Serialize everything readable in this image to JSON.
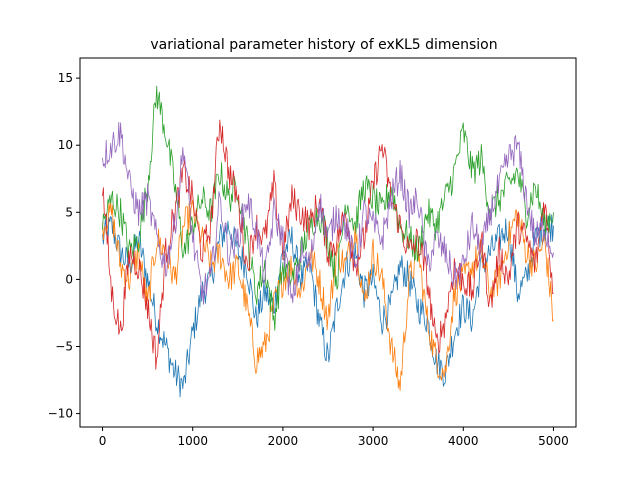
{
  "chart_data": {
    "type": "line",
    "title": "variational parameter history of exKL5 dimension",
    "xlabel": "",
    "ylabel": "",
    "xlim": [
      -250,
      5250
    ],
    "ylim": [
      -11,
      16.5
    ],
    "x_ticks": [
      0,
      1000,
      2000,
      3000,
      4000,
      5000
    ],
    "y_ticks": [
      -10,
      -5,
      0,
      5,
      10,
      15
    ],
    "x_tick_labels": [
      "0",
      "1000",
      "2000",
      "3000",
      "4000",
      "5000"
    ],
    "y_tick_labels": [
      "−10",
      "−5",
      "0",
      "5",
      "10",
      "15"
    ],
    "grid": false,
    "legend": "none",
    "x": [
      0,
      100,
      200,
      300,
      400,
      500,
      600,
      700,
      800,
      900,
      1000,
      1100,
      1200,
      1300,
      1400,
      1500,
      1600,
      1700,
      1800,
      1900,
      2000,
      2100,
      2200,
      2300,
      2400,
      2500,
      2600,
      2700,
      2800,
      2900,
      3000,
      3100,
      3200,
      3300,
      3400,
      3500,
      3600,
      3700,
      3800,
      3900,
      4000,
      4100,
      4200,
      4300,
      4400,
      4500,
      4600,
      4700,
      4800,
      4900,
      5000
    ],
    "series": [
      {
        "color": "#1f77b4",
        "values": [
          3,
          4,
          2,
          1,
          3,
          0,
          -3,
          -5,
          -7,
          -8,
          -4,
          -1,
          0,
          3,
          4,
          2,
          1,
          -3,
          -1,
          -2,
          2,
          3,
          0,
          1,
          -3,
          -6,
          -2,
          1,
          2,
          -1,
          0,
          -3,
          -2,
          1,
          0,
          -2,
          -3,
          -6,
          -7,
          -4,
          -2,
          -3,
          1,
          2,
          3,
          4,
          -1,
          0,
          3,
          4,
          4
        ]
      },
      {
        "color": "#ff7f0e",
        "values": [
          4,
          5,
          1,
          0,
          2,
          -2,
          3,
          2,
          0,
          4,
          5,
          3,
          1,
          2,
          0,
          1,
          -2,
          -6,
          -5,
          -2,
          0,
          1,
          -1,
          2,
          0,
          -3,
          2,
          1,
          4,
          -2,
          2,
          0,
          -5,
          -8,
          0,
          2,
          -3,
          -6,
          -7,
          -1,
          0,
          1,
          2,
          -1,
          0,
          3,
          5,
          2,
          1,
          3,
          -3
        ]
      },
      {
        "color": "#2ca02c",
        "values": [
          4,
          6,
          5,
          2,
          3,
          7,
          14,
          11,
          7,
          2,
          4,
          6,
          5,
          8,
          6,
          7,
          3,
          -1,
          1,
          -3,
          1,
          0,
          2,
          4,
          5,
          3,
          0,
          6,
          4,
          7,
          6,
          5,
          7,
          4,
          3,
          2,
          5,
          4,
          6,
          8,
          11,
          8,
          9,
          5,
          6,
          7,
          8,
          5,
          7,
          4,
          5
        ]
      },
      {
        "color": "#d62728",
        "values": [
          7,
          -1,
          -4,
          2,
          1,
          -2,
          -6,
          2,
          5,
          8,
          6,
          2,
          4,
          12,
          8,
          6,
          1,
          4,
          3,
          7,
          2,
          6,
          5,
          4,
          6,
          2,
          3,
          5,
          1,
          3,
          7,
          10,
          6,
          4,
          2,
          3,
          0,
          -5,
          -3,
          1,
          0,
          -1,
          3,
          -2,
          2,
          0,
          4,
          3,
          1,
          6,
          -1
        ]
      },
      {
        "color": "#9467bd",
        "values": [
          9,
          10,
          11,
          7,
          5,
          6,
          3,
          1,
          4,
          10,
          3,
          -1,
          0,
          6,
          2,
          3,
          6,
          4,
          0,
          5,
          3,
          -2,
          2,
          1,
          6,
          3,
          5,
          4,
          1,
          5,
          4,
          3,
          6,
          8,
          5,
          6,
          1,
          3,
          2,
          0,
          1,
          4,
          2,
          5,
          7,
          9,
          10,
          6,
          3,
          4,
          2
        ]
      }
    ]
  }
}
